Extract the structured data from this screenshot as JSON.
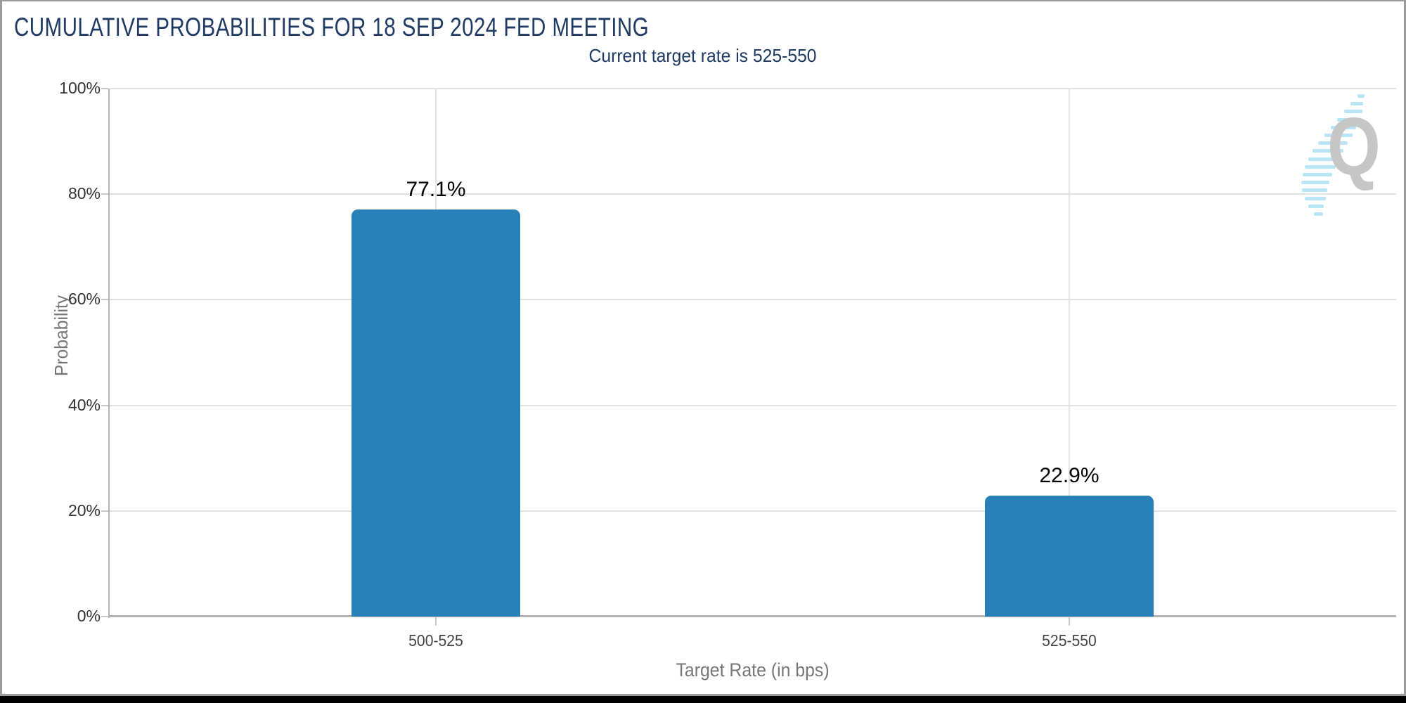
{
  "chart_data": {
    "type": "bar",
    "title": "CUMULATIVE PROBABILITIES FOR 18 SEP 2024 FED MEETING",
    "subtitle": "Current target rate is 525-550",
    "xlabel": "Target Rate (in bps)",
    "ylabel": "Probability",
    "categories": [
      "500-525",
      "525-550"
    ],
    "values": [
      77.1,
      22.9
    ],
    "value_labels": [
      "77.1%",
      "22.9%"
    ],
    "ylim": [
      0,
      100
    ],
    "ytick_labels": [
      "100%",
      "80%",
      "60%",
      "40%",
      "20%",
      "0%"
    ],
    "grid": true,
    "legend_position": "none"
  },
  "colors": {
    "title_navy": "#1f3a63",
    "bar_blue": "#2980b9",
    "grid_line": "#e2e2e2",
    "axis_line": "#b3b3b3",
    "value_label": "#000000",
    "watermark_gray": "#c6c6c6",
    "watermark_blue": "#aee0f5",
    "page_border": "#9a9a9a",
    "bottom_bar": "#000000"
  },
  "watermark": {
    "letter": "Q"
  }
}
